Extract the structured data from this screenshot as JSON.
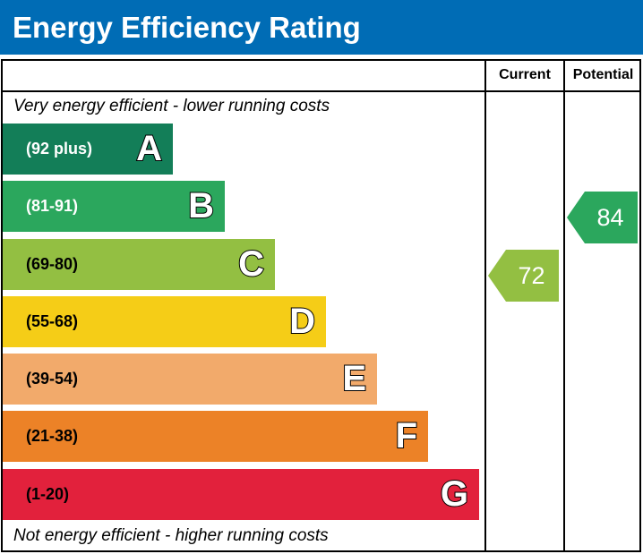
{
  "title": "Energy Efficiency Rating",
  "chart_data": {
    "type": "bar",
    "title": "Energy Efficiency Rating",
    "columns": [
      "Current",
      "Potential"
    ],
    "top_note": "Very energy efficient - lower running costs",
    "bottom_note": "Not energy efficient - higher running costs",
    "bands": [
      {
        "letter": "A",
        "range": "(92 plus)",
        "color": "#137e58",
        "text_color": "#ffffff"
      },
      {
        "letter": "B",
        "range": "(81-91)",
        "color": "#2ba75d",
        "text_color": "#ffffff"
      },
      {
        "letter": "C",
        "range": "(69-80)",
        "color": "#93bf42",
        "text_color": "#000000"
      },
      {
        "letter": "D",
        "range": "(55-68)",
        "color": "#f5cd17",
        "text_color": "#000000"
      },
      {
        "letter": "E",
        "range": "(39-54)",
        "color": "#f2aa6b",
        "text_color": "#000000"
      },
      {
        "letter": "F",
        "range": "(21-38)",
        "color": "#ec8227",
        "text_color": "#000000"
      },
      {
        "letter": "G",
        "range": "(1-20)",
        "color": "#e2213c",
        "text_color": "#000000"
      }
    ],
    "current": {
      "value": "72",
      "band": "C",
      "color": "#93bf42"
    },
    "potential": {
      "value": "84",
      "band": "B",
      "color": "#2ba75d"
    }
  }
}
